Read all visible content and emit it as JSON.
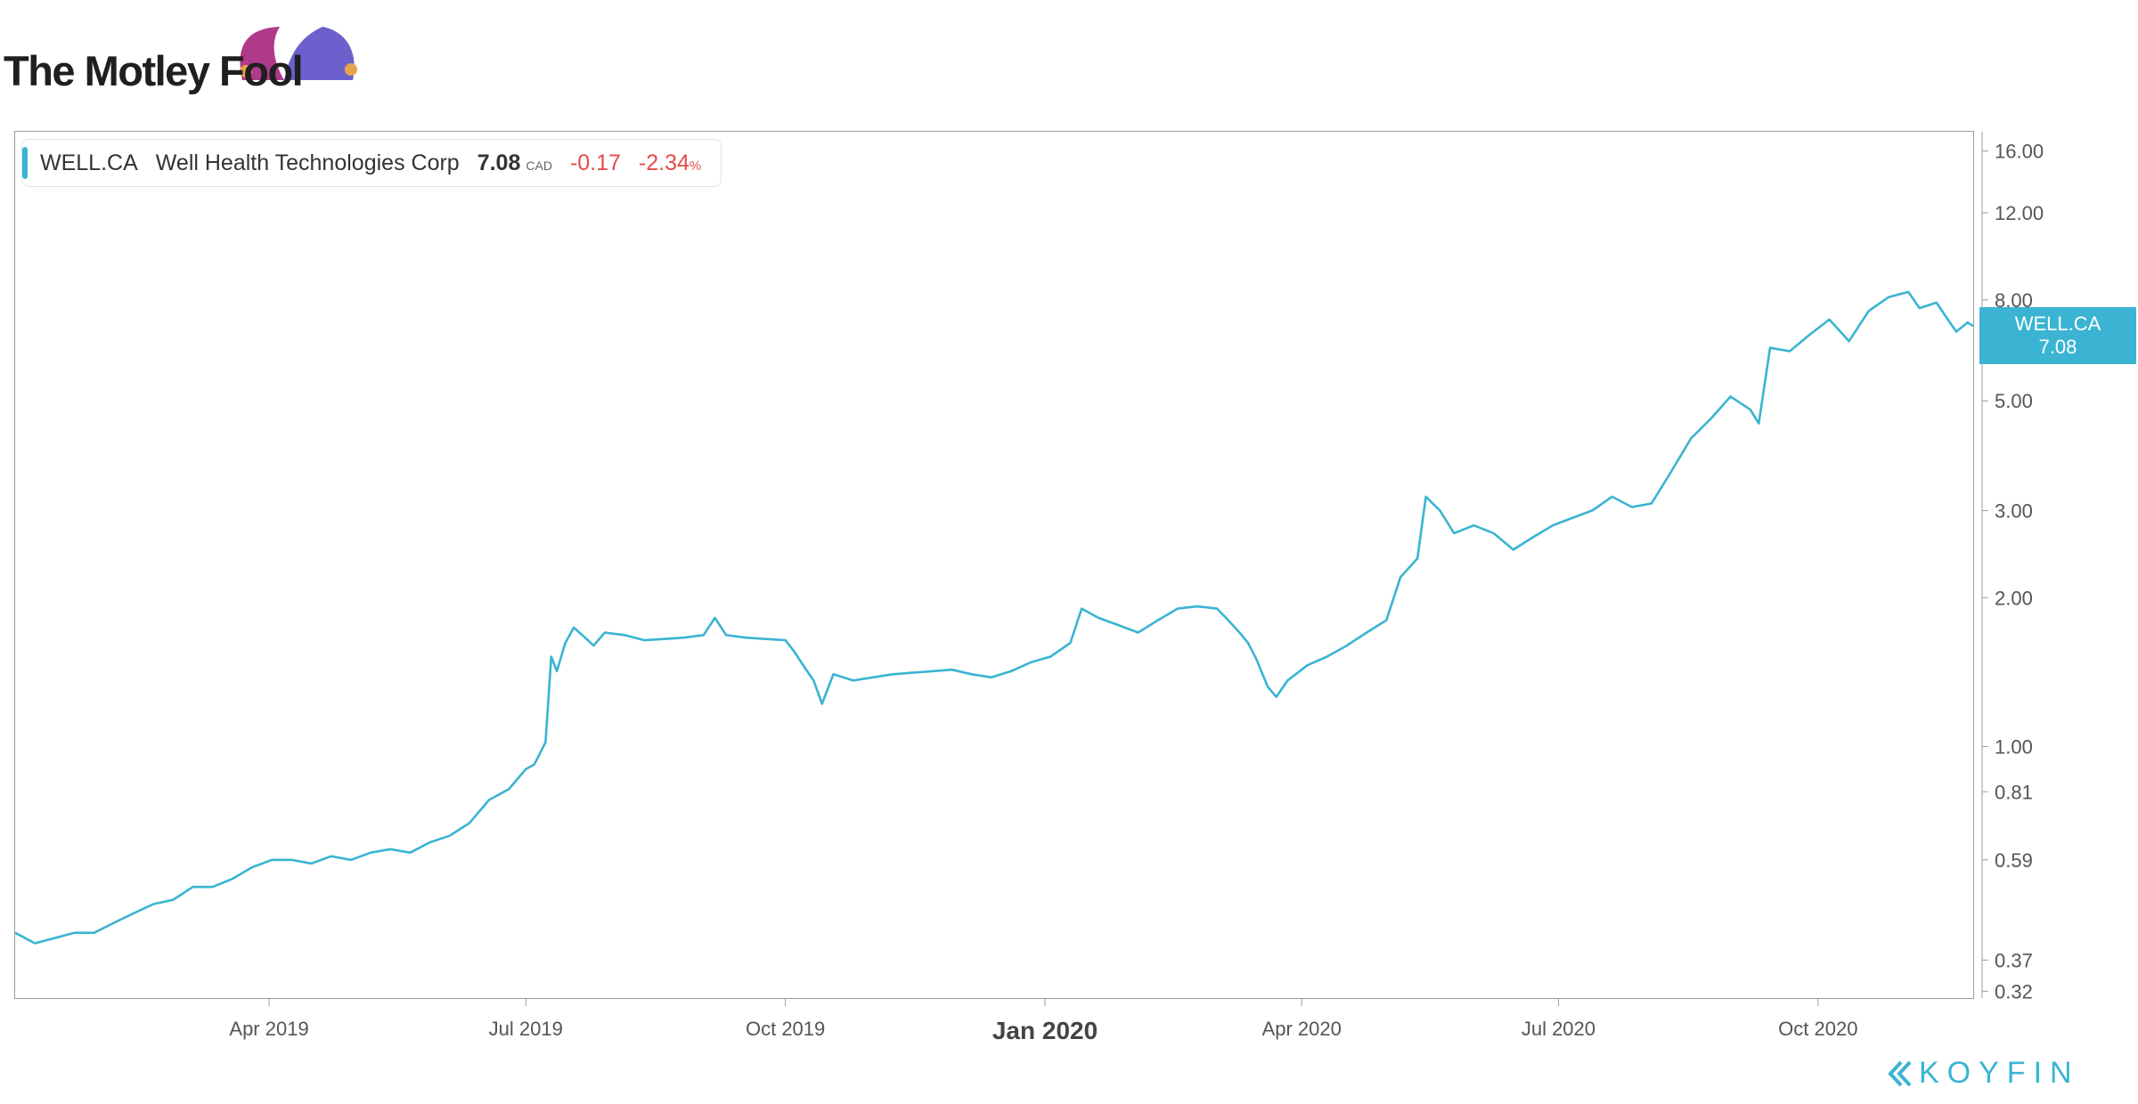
{
  "branding": {
    "logo_text": "The Motley Fool",
    "watermark": "KOYFIN",
    "jester_colors": [
      "#b03a8a",
      "#6b60cc",
      "#e8a44c"
    ]
  },
  "legend": {
    "ticker": "WELL.CA",
    "company": "Well Health Technologies Corp",
    "price": "7.08",
    "currency": "CAD",
    "change": "-0.17",
    "change_pct": "-2.34",
    "pct_sign": "%"
  },
  "price_tag": {
    "ticker": "WELL.CA",
    "price": "7.08"
  },
  "colors": {
    "line": "#3ab4d2",
    "negative": "#e44b4b",
    "axis": "#9a9a9a"
  },
  "chart_data": {
    "type": "line",
    "title": "",
    "xlabel": "",
    "ylabel": "",
    "y_scale": "log",
    "ylim": [
      0.31,
      17.5
    ],
    "xlim": [
      "2019-01-01",
      "2020-11-25"
    ],
    "grid": false,
    "legend_position": "top-left",
    "y_ticks": [
      "16.00",
      "12.00",
      "8.00",
      "5.00",
      "3.00",
      "2.00",
      "1.00",
      "0.81",
      "0.59",
      "0.37",
      "0.32"
    ],
    "x_ticks": [
      {
        "date": "2019-04-01",
        "label": "Apr 2019",
        "major": false
      },
      {
        "date": "2019-07-01",
        "label": "Jul 2019",
        "major": false
      },
      {
        "date": "2019-10-01",
        "label": "Oct 2019",
        "major": false
      },
      {
        "date": "2020-01-01",
        "label": "Jan 2020",
        "major": true
      },
      {
        "date": "2020-04-01",
        "label": "Apr 2020",
        "major": false
      },
      {
        "date": "2020-07-01",
        "label": "Jul 2020",
        "major": false
      },
      {
        "date": "2020-10-01",
        "label": "Oct 2020",
        "major": false
      }
    ],
    "series": [
      {
        "name": "WELL.CA",
        "color": "#3ab4d2",
        "points": [
          [
            "2019-01-01",
            0.42
          ],
          [
            "2019-01-08",
            0.4
          ],
          [
            "2019-01-15",
            0.41
          ],
          [
            "2019-01-22",
            0.42
          ],
          [
            "2019-01-29",
            0.42
          ],
          [
            "2019-02-05",
            0.44
          ],
          [
            "2019-02-12",
            0.46
          ],
          [
            "2019-02-19",
            0.48
          ],
          [
            "2019-02-26",
            0.49
          ],
          [
            "2019-03-05",
            0.52
          ],
          [
            "2019-03-12",
            0.52
          ],
          [
            "2019-03-19",
            0.54
          ],
          [
            "2019-03-26",
            0.57
          ],
          [
            "2019-04-02",
            0.59
          ],
          [
            "2019-04-09",
            0.59
          ],
          [
            "2019-04-16",
            0.58
          ],
          [
            "2019-04-23",
            0.6
          ],
          [
            "2019-04-30",
            0.59
          ],
          [
            "2019-05-07",
            0.61
          ],
          [
            "2019-05-14",
            0.62
          ],
          [
            "2019-05-21",
            0.61
          ],
          [
            "2019-05-28",
            0.64
          ],
          [
            "2019-06-04",
            0.66
          ],
          [
            "2019-06-11",
            0.7
          ],
          [
            "2019-06-18",
            0.78
          ],
          [
            "2019-06-25",
            0.82
          ],
          [
            "2019-06-28",
            0.86
          ],
          [
            "2019-07-01",
            0.9
          ],
          [
            "2019-07-04",
            0.92
          ],
          [
            "2019-07-08",
            1.02
          ],
          [
            "2019-07-10",
            1.52
          ],
          [
            "2019-07-12",
            1.42
          ],
          [
            "2019-07-15",
            1.62
          ],
          [
            "2019-07-18",
            1.74
          ],
          [
            "2019-07-22",
            1.66
          ],
          [
            "2019-07-25",
            1.6
          ],
          [
            "2019-07-29",
            1.7
          ],
          [
            "2019-08-05",
            1.68
          ],
          [
            "2019-08-12",
            1.64
          ],
          [
            "2019-08-19",
            1.65
          ],
          [
            "2019-08-26",
            1.66
          ],
          [
            "2019-09-02",
            1.68
          ],
          [
            "2019-09-06",
            1.82
          ],
          [
            "2019-09-10",
            1.68
          ],
          [
            "2019-09-17",
            1.66
          ],
          [
            "2019-09-24",
            1.65
          ],
          [
            "2019-10-01",
            1.64
          ],
          [
            "2019-10-04",
            1.56
          ],
          [
            "2019-10-08",
            1.44
          ],
          [
            "2019-10-11",
            1.36
          ],
          [
            "2019-10-14",
            1.22
          ],
          [
            "2019-10-18",
            1.4
          ],
          [
            "2019-10-25",
            1.36
          ],
          [
            "2019-11-01",
            1.38
          ],
          [
            "2019-11-08",
            1.4
          ],
          [
            "2019-11-15",
            1.41
          ],
          [
            "2019-11-22",
            1.42
          ],
          [
            "2019-11-29",
            1.43
          ],
          [
            "2019-12-06",
            1.4
          ],
          [
            "2019-12-13",
            1.38
          ],
          [
            "2019-12-20",
            1.42
          ],
          [
            "2019-12-27",
            1.48
          ],
          [
            "2020-01-03",
            1.52
          ],
          [
            "2020-01-10",
            1.62
          ],
          [
            "2020-01-14",
            1.9
          ],
          [
            "2020-01-20",
            1.82
          ],
          [
            "2020-01-27",
            1.76
          ],
          [
            "2020-02-03",
            1.7
          ],
          [
            "2020-02-10",
            1.8
          ],
          [
            "2020-02-17",
            1.9
          ],
          [
            "2020-02-24",
            1.92
          ],
          [
            "2020-03-02",
            1.9
          ],
          [
            "2020-03-06",
            1.8
          ],
          [
            "2020-03-10",
            1.7
          ],
          [
            "2020-03-13",
            1.62
          ],
          [
            "2020-03-16",
            1.5
          ],
          [
            "2020-03-20",
            1.32
          ],
          [
            "2020-03-23",
            1.26
          ],
          [
            "2020-03-27",
            1.36
          ],
          [
            "2020-04-03",
            1.46
          ],
          [
            "2020-04-10",
            1.52
          ],
          [
            "2020-04-17",
            1.6
          ],
          [
            "2020-04-24",
            1.7
          ],
          [
            "2020-05-01",
            1.8
          ],
          [
            "2020-05-06",
            2.2
          ],
          [
            "2020-05-12",
            2.4
          ],
          [
            "2020-05-15",
            3.2
          ],
          [
            "2020-05-20",
            3.0
          ],
          [
            "2020-05-25",
            2.7
          ],
          [
            "2020-06-01",
            2.8
          ],
          [
            "2020-06-08",
            2.7
          ],
          [
            "2020-06-15",
            2.5
          ],
          [
            "2020-06-22",
            2.65
          ],
          [
            "2020-06-29",
            2.8
          ],
          [
            "2020-07-06",
            2.9
          ],
          [
            "2020-07-13",
            3.0
          ],
          [
            "2020-07-20",
            3.2
          ],
          [
            "2020-07-27",
            3.05
          ],
          [
            "2020-08-03",
            3.1
          ],
          [
            "2020-08-10",
            3.6
          ],
          [
            "2020-08-17",
            4.2
          ],
          [
            "2020-08-24",
            4.6
          ],
          [
            "2020-08-31",
            5.1
          ],
          [
            "2020-09-07",
            4.8
          ],
          [
            "2020-09-10",
            4.5
          ],
          [
            "2020-09-14",
            6.4
          ],
          [
            "2020-09-21",
            6.3
          ],
          [
            "2020-09-28",
            6.8
          ],
          [
            "2020-10-05",
            7.3
          ],
          [
            "2020-10-12",
            6.6
          ],
          [
            "2020-10-19",
            7.6
          ],
          [
            "2020-10-26",
            8.1
          ],
          [
            "2020-11-02",
            8.3
          ],
          [
            "2020-11-06",
            7.7
          ],
          [
            "2020-11-12",
            7.9
          ],
          [
            "2020-11-16",
            7.3
          ],
          [
            "2020-11-19",
            6.9
          ],
          [
            "2020-11-23",
            7.2
          ],
          [
            "2020-11-25",
            7.08
          ]
        ]
      }
    ]
  }
}
